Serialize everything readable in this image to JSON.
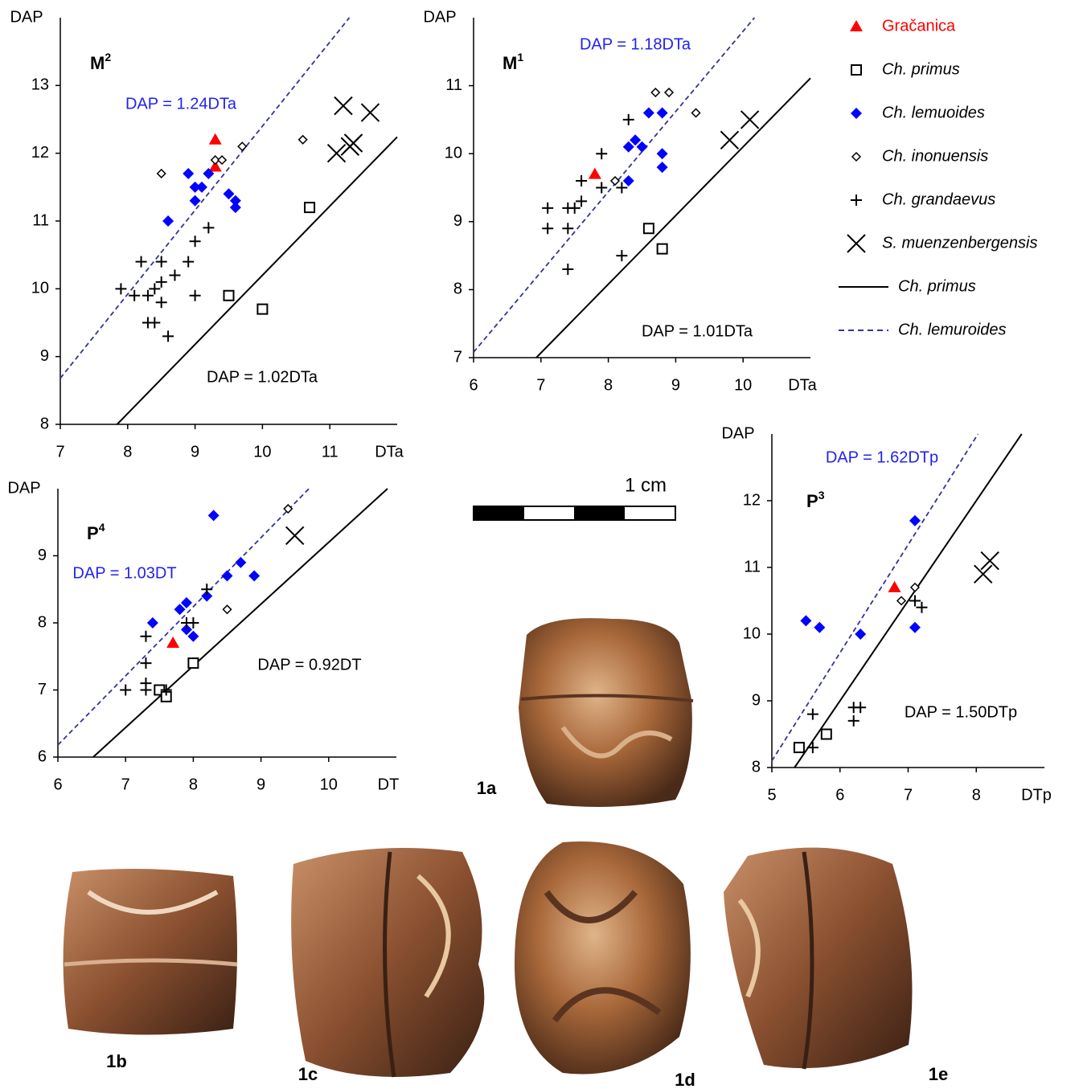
{
  "chart_data": [
    {
      "type": "scatter",
      "title": "M",
      "title_sup": "2",
      "x_label": "DTa",
      "y_label": "DAP",
      "xlim": [
        7,
        12
      ],
      "ylim": [
        8,
        14
      ],
      "xticks": [
        7,
        8,
        9,
        10,
        11
      ],
      "yticks": [
        8,
        9,
        10,
        11,
        12,
        13
      ],
      "series": [
        {
          "x": [
            9.3,
            9.3
          ],
          "y": [
            12.2,
            11.8
          ]
        },
        {
          "x": [
            10.7,
            9.5,
            10.0
          ],
          "y": [
            11.2,
            9.9,
            9.7
          ]
        },
        {
          "x": [
            8.9,
            9.0,
            9.1,
            9.0,
            9.2,
            9.5,
            9.6,
            9.6,
            8.6
          ],
          "y": [
            11.7,
            11.5,
            11.5,
            11.3,
            11.7,
            11.4,
            11.3,
            11.2,
            11.0
          ]
        },
        {
          "x": [
            8.5,
            9.3,
            9.4,
            9.7,
            10.6
          ],
          "y": [
            11.7,
            11.9,
            11.9,
            12.1,
            12.2
          ]
        },
        {
          "x": [
            7.9,
            8.1,
            8.3,
            8.4,
            8.2,
            8.5,
            8.5,
            8.5,
            8.3,
            8.4,
            8.6,
            8.7,
            8.9,
            9.0,
            9.0,
            9.2
          ],
          "y": [
            10.0,
            9.9,
            9.9,
            10.0,
            10.4,
            10.4,
            10.1,
            9.8,
            9.5,
            9.5,
            9.3,
            10.2,
            10.4,
            9.9,
            10.7,
            10.9
          ]
        },
        {
          "x": [
            11.2,
            11.6,
            11.1,
            11.3,
            11.35
          ],
          "y": [
            12.7,
            12.6,
            12.0,
            12.1,
            12.15
          ]
        }
      ],
      "fits": [
        {
          "slope": 1.02,
          "label": "DAP = 1.02DTa"
        },
        {
          "slope": 1.24,
          "label": "DAP = 1.24DTa"
        }
      ]
    },
    {
      "type": "scatter",
      "title": "M",
      "title_sup": "1",
      "x_label": "DTa",
      "y_label": "DAP",
      "xlim": [
        6,
        11
      ],
      "ylim": [
        7,
        12
      ],
      "xticks": [
        6,
        7,
        8,
        9,
        10
      ],
      "yticks": [
        7,
        8,
        9,
        10,
        11
      ],
      "series": [
        {
          "x": [
            7.8
          ],
          "y": [
            9.7
          ]
        },
        {
          "x": [
            8.6,
            8.8
          ],
          "y": [
            8.9,
            8.6
          ]
        },
        {
          "x": [
            8.6,
            8.8,
            8.3,
            8.4,
            8.5,
            8.8,
            8.8,
            8.3
          ],
          "y": [
            10.6,
            10.6,
            10.1,
            10.2,
            10.1,
            10.0,
            9.8,
            9.6
          ]
        },
        {
          "x": [
            8.7,
            8.9,
            9.3,
            8.1
          ],
          "y": [
            10.9,
            10.9,
            10.6,
            9.6
          ]
        },
        {
          "x": [
            7.1,
            7.1,
            7.4,
            7.5,
            7.6,
            7.4,
            7.6,
            7.9,
            7.9,
            8.2,
            8.3,
            7.4,
            8.2
          ],
          "y": [
            9.2,
            8.9,
            9.2,
            9.2,
            9.3,
            8.9,
            9.6,
            10.0,
            9.5,
            9.5,
            10.5,
            8.3,
            8.5
          ]
        },
        {
          "x": [
            9.8,
            10.1
          ],
          "y": [
            10.2,
            10.5
          ]
        }
      ],
      "fits": [
        {
          "slope": 1.01,
          "label": "DAP = 1.01DTa"
        },
        {
          "slope": 1.18,
          "label": "DAP = 1.18DTa"
        }
      ]
    },
    {
      "type": "scatter",
      "title": "P",
      "title_sup": "4",
      "x_label": "DT",
      "y_label": "DAP",
      "xlim": [
        6,
        11
      ],
      "ylim": [
        6,
        10
      ],
      "xticks": [
        6,
        7,
        8,
        9,
        10
      ],
      "yticks": [
        6,
        7,
        8,
        9
      ],
      "series": [
        {
          "x": [
            7.7
          ],
          "y": [
            7.7
          ]
        },
        {
          "x": [
            8.0,
            7.5,
            7.6
          ],
          "y": [
            7.4,
            7.0,
            6.9
          ]
        },
        {
          "x": [
            8.3,
            8.7,
            8.5,
            8.9,
            8.2,
            7.9,
            7.8,
            7.4,
            7.9,
            8.0
          ],
          "y": [
            9.6,
            8.9,
            8.7,
            8.7,
            8.4,
            8.3,
            8.2,
            8.0,
            7.9,
            7.8
          ]
        },
        {
          "x": [
            9.4,
            8.5
          ],
          "y": [
            9.7,
            8.2
          ]
        },
        {
          "x": [
            8.2,
            8.0,
            7.9,
            7.3,
            7.3,
            7.3,
            7.3,
            7.0,
            7.6
          ],
          "y": [
            8.5,
            8.0,
            8.0,
            7.8,
            7.4,
            7.1,
            7.0,
            7.0,
            7.0
          ]
        },
        {
          "x": [
            9.5
          ],
          "y": [
            9.3
          ]
        }
      ],
      "fits": [
        {
          "slope": 0.92,
          "label": "DAP = 0.92DT"
        },
        {
          "slope": 1.03,
          "label": "DAP = 1.03DT"
        }
      ]
    },
    {
      "type": "scatter",
      "title": "P",
      "title_sup": "3",
      "x_label": "DTp",
      "y_label": "DAP",
      "xlim": [
        5,
        9
      ],
      "ylim": [
        8,
        13
      ],
      "xticks": [
        5,
        6,
        7,
        8
      ],
      "yticks": [
        8,
        9,
        10,
        11,
        12
      ],
      "series": [
        {
          "x": [
            6.8
          ],
          "y": [
            10.7
          ]
        },
        {
          "x": [
            5.4,
            5.8
          ],
          "y": [
            8.3,
            8.5
          ]
        },
        {
          "x": [
            7.1,
            5.5,
            5.7,
            6.3,
            7.1
          ],
          "y": [
            11.7,
            10.2,
            10.1,
            10.0,
            10.1
          ]
        },
        {
          "x": [
            7.1,
            6.9
          ],
          "y": [
            10.7,
            10.5
          ]
        },
        {
          "x": [
            7.1,
            7.2,
            5.6,
            5.6,
            6.2,
            6.3,
            6.2
          ],
          "y": [
            10.5,
            10.4,
            8.8,
            8.3,
            8.9,
            8.9,
            8.7
          ]
        },
        {
          "x": [
            8.1,
            8.2
          ],
          "y": [
            10.9,
            11.1
          ]
        }
      ],
      "fits": [
        {
          "slope": 1.5,
          "label": "DAP = 1.50DTp"
        },
        {
          "slope": 1.62,
          "label": "DAP = 1.62DTp"
        }
      ]
    }
  ],
  "legend": {
    "markers": [
      {
        "name": "Gračanica",
        "marker": "triangle",
        "color": "#ff0000"
      },
      {
        "name": "Ch. primus",
        "marker": "square",
        "color": "#000000"
      },
      {
        "name": "Ch. lemuoides",
        "marker": "diamond",
        "color": "#0000ff"
      },
      {
        "name": "Ch. inonuensis",
        "marker": "diamond-open",
        "color": "#000000"
      },
      {
        "name": "Ch. grandaevus",
        "marker": "plus",
        "color": "#000000"
      },
      {
        "name": "S. muenzenbergensis",
        "marker": "cross",
        "color": "#000000"
      }
    ],
    "lines": [
      {
        "name": "Ch. primus",
        "style": "solid",
        "color": "#000000",
        "label_color": "#000000"
      },
      {
        "name": "Ch. lemuroides",
        "style": "dashed",
        "color": "#333399",
        "label_color": "#2222ee"
      }
    ]
  },
  "scale_bar": "1 cm",
  "photos": [
    "1a",
    "1b",
    "1c",
    "1d",
    "1e"
  ]
}
